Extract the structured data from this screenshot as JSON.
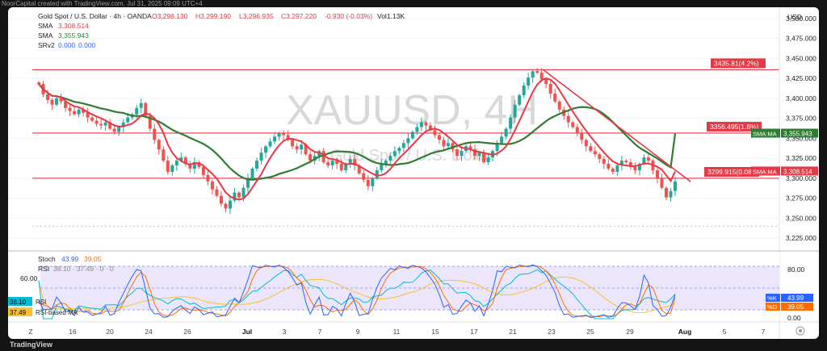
{
  "window_title": "NoorCapital created with TradingView.com, Jul 31, 2025 09:09 UTC+4",
  "footer_brand": "TradingView",
  "legend": {
    "title": "Gold Spot / U.S. Dollar · 4h · OANDA",
    "open": "O3,298.130",
    "high": "H3,299.190",
    "low": "L3,296.935",
    "close": "C3,297.220",
    "change": "-0.930 (-0.03%)",
    "volume": "Vol1.13K",
    "sma1_label": "SMA",
    "sma1_value": "3,308.514",
    "sma2_label": "SMA",
    "sma2_value": "3,355.943",
    "srv_label": "SRv2",
    "srv_value_a": "0.000",
    "srv_value_b": "0.000"
  },
  "watermark": {
    "symbol": "XAUUSD, 4H",
    "name": "Gold Spot / U.S. Dollar"
  },
  "currency": "USD",
  "price_axis": [
    "3,500.000",
    "3,475.000",
    "3,450.000",
    "3,425.000",
    "3,400.000",
    "3,375.000",
    "3,350.000",
    "3,325.000",
    "3,300.000",
    "3,275.000",
    "3,250.000",
    "3,225.000"
  ],
  "levels": [
    {
      "label": "3435.81(4.2%)",
      "price": 3435.81
    },
    {
      "label": "3356.495(1.8%)",
      "price": 3356.495
    },
    {
      "label": "3299.915(0.08%)",
      "price": 3299.915
    }
  ],
  "axis_badges": [
    {
      "text": "SMA:MA",
      "value": "3,355.943",
      "color": "#2e7d32"
    },
    {
      "text": "SMA:MA",
      "value": "3,308.514",
      "color": "#e53945"
    }
  ],
  "time_axis": [
    "Z",
    "16",
    "20",
    "24",
    "26",
    "Jul",
    "3",
    "7",
    "9",
    "11",
    "15",
    "17",
    "21",
    "23",
    "25",
    "29",
    "Aug",
    "5",
    "7"
  ],
  "osc_legend": {
    "stoch_label": "Stoch",
    "stoch_k": "43.99",
    "stoch_d": "39.05",
    "rsi_label": "RSI",
    "rsi_params": "38.10 · 37.49 · 0 · 0"
  },
  "osc_axis": [
    "80.00",
    "60.00",
    "0.00"
  ],
  "osc_badges": [
    {
      "tag": "%K",
      "value": "43.99"
    },
    {
      "tag": "%D",
      "value": "39.05"
    }
  ],
  "left_badges": [
    {
      "text": "38.10",
      "tag": "RSI"
    },
    {
      "text": "37.49",
      "tag": "RSI-based MA"
    }
  ],
  "colors": {
    "bull": "#26a69a",
    "bear": "#ef5350",
    "sma_fast": "#e53945",
    "sma_slow": "#2e7d32",
    "level": "#e53945",
    "trend": "#e53945",
    "stoch_k": "#2962ff",
    "stoch_d": "#ff6d00",
    "rsi": "#00bcd4",
    "rsi_ma": "#fbc02d"
  },
  "chart_data": {
    "type": "candlestick",
    "price_range": [
      3215,
      3510
    ],
    "closes": [
      3418,
      3405,
      3398,
      3392,
      3400,
      3396,
      3388,
      3384,
      3380,
      3386,
      3382,
      3376,
      3372,
      3368,
      3366,
      3370,
      3362,
      3358,
      3364,
      3370,
      3376,
      3380,
      3388,
      3394,
      3378,
      3362,
      3348,
      3336,
      3322,
      3308,
      3316,
      3322,
      3326,
      3318,
      3312,
      3320,
      3314,
      3304,
      3296,
      3286,
      3278,
      3268,
      3262,
      3272,
      3282,
      3276,
      3288,
      3300,
      3312,
      3322,
      3332,
      3340,
      3346,
      3352,
      3356,
      3354,
      3348,
      3340,
      3336,
      3342,
      3330,
      3322,
      3328,
      3334,
      3320,
      3316,
      3322,
      3318,
      3310,
      3318,
      3324,
      3316,
      3306,
      3298,
      3290,
      3300,
      3310,
      3318,
      3322,
      3328,
      3334,
      3338,
      3344,
      3350,
      3358,
      3364,
      3370,
      3366,
      3360,
      3354,
      3348,
      3340,
      3344,
      3336,
      3328,
      3334,
      3340,
      3336,
      3328,
      3332,
      3320,
      3326,
      3334,
      3344,
      3352,
      3362,
      3376,
      3392,
      3404,
      3416,
      3426,
      3434,
      3432,
      3424,
      3418,
      3406,
      3396,
      3386,
      3378,
      3370,
      3364,
      3356,
      3348,
      3340,
      3334,
      3330,
      3324,
      3318,
      3312,
      3308,
      3316,
      3322,
      3320,
      3314,
      3310,
      3318,
      3326,
      3322,
      3310,
      3300,
      3288,
      3276,
      3284,
      3296
    ],
    "sma_fast_end": 3308.514,
    "sma_slow_end": 3355.943,
    "stoch_k_end": 43.99,
    "stoch_d_end": 39.05
  }
}
